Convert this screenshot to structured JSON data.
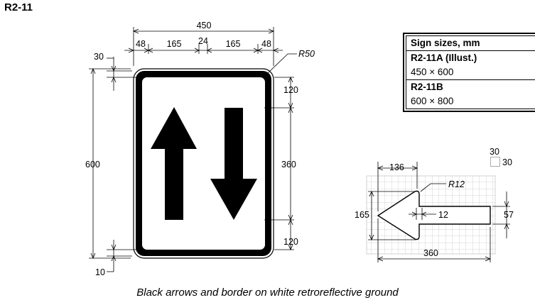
{
  "title": "R2-11",
  "caption": "Black arrows and border on white retroreflective ground",
  "sizes_table": {
    "header": "Sign sizes, mm",
    "rows": [
      {
        "code": "R2-11A (Illust.)",
        "size": "450 × 600"
      },
      {
        "code": "R2-11B",
        "size": "600 × 800"
      }
    ]
  },
  "dims": {
    "overall_width": "450",
    "d48_left": "48",
    "d165_left": "165",
    "d24": "24",
    "d165_right": "165",
    "d48_right": "48",
    "border_offset": "30",
    "corner_radius": "R50",
    "overall_height": "600",
    "border_width": "10",
    "top_gap": "120",
    "arrow_length": "360",
    "bottom_gap": "120"
  },
  "detail": {
    "grid_top": "30",
    "grid_side": "30",
    "head_length": "136",
    "head_radius": "R12",
    "head_width": "165",
    "head_step": "12",
    "shaft_width": "57",
    "total_length": "360"
  },
  "colors": {
    "ink": "#000000",
    "grid": "#c8c8c8",
    "ground": "#ffffff"
  }
}
